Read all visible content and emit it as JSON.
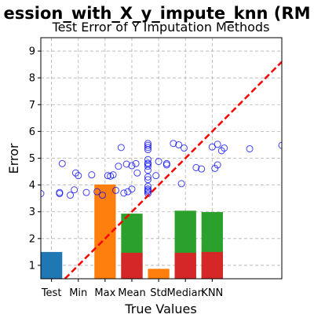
{
  "chart_data": {
    "type": "bar",
    "suptitle": "ession_with_X_y_impute_knn (RM",
    "title": "Test Error of Y Imputation Methods",
    "xlabel": "True Values",
    "ylabel": "Error",
    "categories": [
      "Test",
      "Min",
      "Max",
      "Mean",
      "Std",
      "Median",
      "KNN"
    ],
    "xlim": [
      -0.4,
      8.6
    ],
    "ylim": [
      0.5,
      9.5
    ],
    "yticks": [
      1,
      2,
      3,
      4,
      5,
      6,
      7,
      8,
      9
    ],
    "grid": true,
    "colors": {
      "blue": "#1f77b4",
      "orange": "#ff7f0e",
      "green": "#2ca02c",
      "red": "#d62728",
      "scatter": "#0000ff",
      "diagonal": "#ff0000",
      "grid": "#b0b0b0"
    },
    "bars": [
      {
        "category": "Test",
        "bottom": 0,
        "value": 1.5,
        "color": "blue"
      },
      {
        "category": "Max",
        "bottom": 0,
        "value": 4.02,
        "color": "orange"
      },
      {
        "category": "Mean",
        "bottom": 0,
        "value": 2.93,
        "color": "green"
      },
      {
        "category": "Mean",
        "bottom": 0,
        "value": 1.47,
        "color": "red"
      },
      {
        "category": "Std",
        "bottom": 0,
        "value": 0.87,
        "color": "orange"
      },
      {
        "category": "Median",
        "bottom": 0,
        "value": 3.04,
        "color": "green"
      },
      {
        "category": "Median",
        "bottom": 0,
        "value": 1.47,
        "color": "red"
      },
      {
        "category": "KNN",
        "bottom": 0,
        "value": 2.99,
        "color": "green"
      },
      {
        "category": "KNN",
        "bottom": 0,
        "value": 1.5,
        "color": "red"
      }
    ],
    "scatter_points": [
      [
        -0.4,
        3.68
      ],
      [
        0.3,
        3.72
      ],
      [
        0.3,
        3.68
      ],
      [
        0.4,
        4.8
      ],
      [
        0.7,
        3.62
      ],
      [
        0.85,
        3.82
      ],
      [
        0.9,
        4.45
      ],
      [
        1.0,
        4.35
      ],
      [
        1.3,
        3.72
      ],
      [
        1.5,
        4.38
      ],
      [
        1.7,
        3.75
      ],
      [
        1.9,
        3.62
      ],
      [
        2.1,
        4.35
      ],
      [
        2.2,
        4.33
      ],
      [
        2.3,
        4.38
      ],
      [
        2.4,
        3.8
      ],
      [
        2.5,
        4.7
      ],
      [
        2.6,
        5.4
      ],
      [
        2.7,
        3.7
      ],
      [
        2.8,
        4.78
      ],
      [
        2.85,
        3.75
      ],
      [
        3.0,
        4.72
      ],
      [
        3.0,
        3.85
      ],
      [
        3.15,
        4.8
      ],
      [
        3.2,
        4.45
      ],
      [
        3.6,
        5.55
      ],
      [
        3.6,
        5.48
      ],
      [
        3.6,
        5.4
      ],
      [
        3.6,
        5.32
      ],
      [
        3.6,
        4.95
      ],
      [
        3.6,
        4.82
      ],
      [
        3.6,
        4.78
      ],
      [
        3.6,
        4.7
      ],
      [
        3.6,
        4.55
      ],
      [
        3.6,
        4.3
      ],
      [
        3.6,
        4.2
      ],
      [
        3.6,
        3.95
      ],
      [
        3.6,
        3.85
      ],
      [
        3.6,
        3.8
      ],
      [
        3.6,
        3.75
      ],
      [
        3.6,
        3.68
      ],
      [
        3.9,
        4.35
      ],
      [
        4.0,
        4.88
      ],
      [
        4.3,
        4.8
      ],
      [
        4.3,
        4.75
      ],
      [
        4.55,
        5.55
      ],
      [
        4.75,
        5.5
      ],
      [
        4.85,
        4.05
      ],
      [
        4.95,
        5.38
      ],
      [
        5.4,
        4.65
      ],
      [
        5.6,
        4.6
      ],
      [
        6.0,
        5.42
      ],
      [
        6.2,
        5.52
      ],
      [
        6.1,
        4.62
      ],
      [
        6.2,
        4.75
      ],
      [
        6.35,
        5.28
      ],
      [
        6.45,
        5.38
      ],
      [
        7.4,
        5.35
      ],
      [
        8.6,
        5.48
      ]
    ],
    "diagonal": [
      [
        0.5,
        0.5
      ],
      [
        9.5,
        9.5
      ]
    ]
  }
}
